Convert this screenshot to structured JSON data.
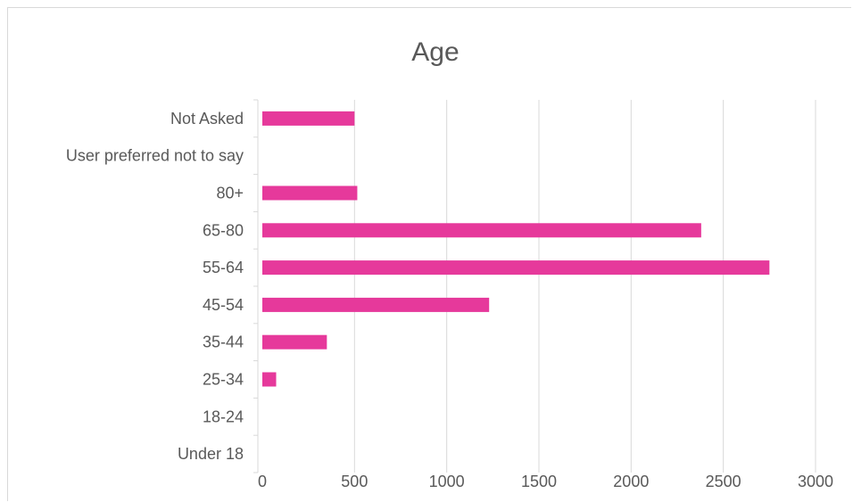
{
  "chart_data": {
    "type": "bar",
    "orientation": "horizontal",
    "title": "Age",
    "categories": [
      "Not Asked",
      "User preferred not to say",
      "80+",
      "65-80",
      "55-64",
      "45-54",
      "35-44",
      "25-34",
      "18-24",
      "Under 18"
    ],
    "values": [
      500,
      0,
      515,
      2380,
      2750,
      1230,
      350,
      75,
      0,
      0
    ],
    "xlim": [
      0,
      3000
    ],
    "xticks": [
      0,
      500,
      1000,
      1500,
      2000,
      2500,
      3000
    ],
    "xtick_labels": [
      "0",
      "500",
      "1000",
      "1500",
      "2000",
      "2500",
      "3000"
    ],
    "grid": true,
    "legend": "none",
    "colors": {
      "bar": "#e6399b",
      "grid": "#d9d9d9",
      "axis": "#d9d9d9",
      "text": "#595959"
    }
  }
}
